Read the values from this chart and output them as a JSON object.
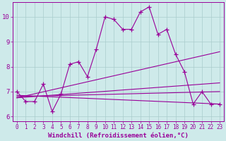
{
  "xlabel": "Windchill (Refroidissement éolien,°C)",
  "ylabel": "",
  "bg_color": "#ceeaea",
  "line_color": "#990099",
  "grid_color": "#aacccc",
  "x_data": [
    0,
    1,
    2,
    3,
    4,
    5,
    6,
    7,
    8,
    9,
    10,
    11,
    12,
    13,
    14,
    15,
    16,
    17,
    18,
    19,
    20,
    21,
    22,
    23
  ],
  "y_data": [
    7.0,
    6.6,
    6.6,
    7.3,
    6.2,
    6.9,
    8.1,
    8.2,
    7.6,
    8.7,
    10.0,
    9.9,
    9.5,
    9.5,
    10.2,
    10.4,
    9.3,
    9.5,
    8.5,
    7.8,
    6.5,
    7.0,
    6.5,
    6.5
  ],
  "trend_lines": [
    {
      "x0": 0,
      "y0": 6.85,
      "x1": 23,
      "y1": 6.5
    },
    {
      "x0": 0,
      "y0": 6.75,
      "x1": 23,
      "y1": 7.35
    },
    {
      "x0": 0,
      "y0": 6.75,
      "x1": 23,
      "y1": 8.6
    },
    {
      "x0": 0,
      "y0": 6.8,
      "x1": 23,
      "y1": 7.0
    }
  ],
  "xlim": [
    -0.5,
    23.5
  ],
  "ylim": [
    5.8,
    10.6
  ],
  "yticks": [
    6,
    7,
    8,
    9,
    10
  ],
  "xticks": [
    0,
    1,
    2,
    3,
    4,
    5,
    6,
    7,
    8,
    9,
    10,
    11,
    12,
    13,
    14,
    15,
    16,
    17,
    18,
    19,
    20,
    21,
    22,
    23
  ],
  "marker": "+",
  "markersize": 5,
  "linewidth": 0.8,
  "trend_linewidth": 0.8,
  "font_color": "#990099",
  "tick_fontsize": 5.5,
  "xlabel_fontsize": 6.5
}
